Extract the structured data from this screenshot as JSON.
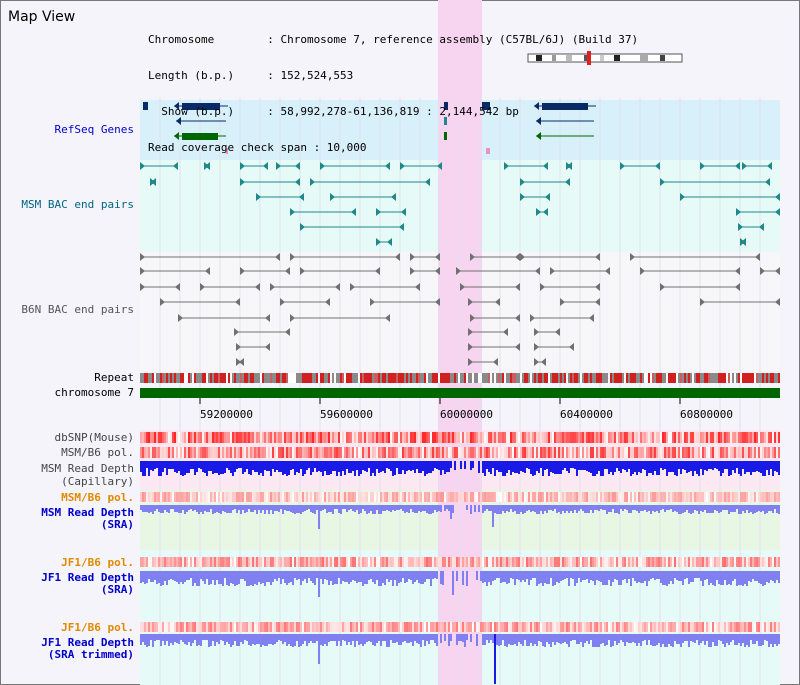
{
  "app": {
    "title": "Map View"
  },
  "header": {
    "lines": [
      "Chromosome        : Chromosome 7, reference assembly (C57BL/6J) (Build 37)",
      "Length (b.p.)     : 152,524,553",
      "  Show (b.p.)     : 58,992,278-61,136,819 : 2,144,542 bp",
      "Read coverage check span : 10,000"
    ]
  },
  "tracks": {
    "refseq": "RefSeq Genes",
    "msm_bac": "MSM BAC end pairs",
    "b6n_bac": "B6N BAC end pairs",
    "repeat": "Repeat",
    "chromosome": "chromosome 7",
    "dbsnp": "dbSNP(Mouse)",
    "msm_b6_pol": "MSM/B6 pol.",
    "msm_read_depth_cap_1": "MSM Read Depth",
    "msm_read_depth_cap_2": "(Capillary)",
    "msm_b6_pol_sra": "MSM/B6 pol.",
    "msm_read_depth_sra_1": "MSM Read Depth",
    "msm_read_depth_sra_2": "(SRA)",
    "jf1_b6_pol": "JF1/B6 pol.",
    "jf1_read_depth_1": "JF1 Read Depth",
    "jf1_read_depth_2": "(SRA)",
    "jf1_b6_pol_2": "JF1/B6 pol.",
    "jf1_read_depth_trim_1": "JF1 Read Depth",
    "jf1_read_depth_trim_2": "(SRA trimmed)"
  },
  "axis": {
    "ticks": [
      "59200000",
      "59600000",
      "60000000",
      "60400000",
      "60800000"
    ]
  },
  "colors": {
    "blue_label": "#0000cc",
    "teal_label": "#006680",
    "gray_label": "#555555",
    "orange_label": "#e08a00",
    "refseq_bg": "#d8f0fa",
    "bac_bg": "#e6faf8",
    "highlight": "#f7d4f0",
    "gene_navy": "#0a2a66",
    "gene_green": "#006600",
    "bac_teal": "#208888",
    "bac_gray": "#707070",
    "depth_blue": "#1a1ae6",
    "depth_light": "#8080f0",
    "chrom_green": "#006600"
  }
}
